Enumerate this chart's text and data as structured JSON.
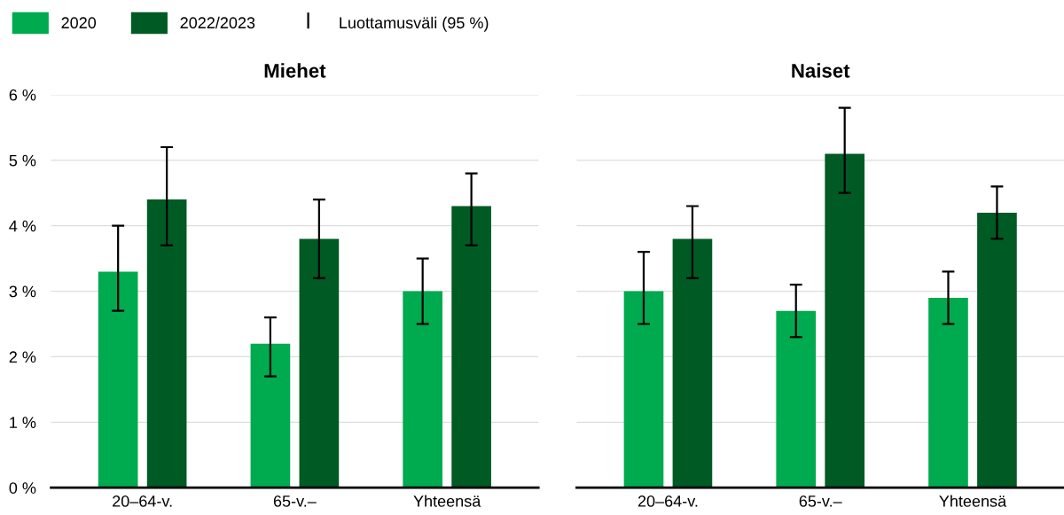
{
  "chart_data": [
    {
      "type": "bar",
      "title": "Miehet",
      "categories": [
        "20–64-v.",
        "65-v.–",
        "Yhteensä"
      ],
      "series": [
        {
          "name": "2020",
          "color": "#00aa4f",
          "values": [
            3.3,
            2.2,
            3.0
          ],
          "errors": [
            [
              2.7,
              4.0
            ],
            [
              1.7,
              2.6
            ],
            [
              2.5,
              3.5
            ]
          ]
        },
        {
          "name": "2022/2023",
          "color": "#005a24",
          "values": [
            4.4,
            3.8,
            4.3
          ],
          "errors": [
            [
              3.7,
              5.2
            ],
            [
              3.2,
              4.4
            ],
            [
              3.7,
              4.8
            ]
          ]
        }
      ],
      "ylim": [
        0,
        6
      ],
      "yticks": [
        {
          "value": 0,
          "label": "0 %"
        },
        {
          "value": 1,
          "label": "1 %"
        },
        {
          "value": 2,
          "label": "2 %"
        },
        {
          "value": 3,
          "label": "3 %"
        },
        {
          "value": 4,
          "label": "4 %"
        },
        {
          "value": 5,
          "label": "5 %"
        },
        {
          "value": 6,
          "label": "6 %"
        }
      ],
      "grid": "y",
      "legend": "top left",
      "annotations": [
        "Luottamusväli (95 %)"
      ]
    },
    {
      "type": "bar",
      "title": "Naiset",
      "categories": [
        "20–64-v.",
        "65-v.–",
        "Yhteensä"
      ],
      "series": [
        {
          "color": "#00aa4f",
          "values": [
            3.0,
            2.7,
            2.9
          ],
          "errors": [
            [
              2.5,
              3.6
            ],
            [
              2.3,
              3.1
            ],
            [
              2.5,
              3.3
            ]
          ]
        },
        {
          "color": "#005a24",
          "values": [
            3.8,
            5.1,
            4.2
          ],
          "errors": [
            [
              3.2,
              4.3
            ],
            [
              4.5,
              5.8
            ],
            [
              3.8,
              4.6
            ]
          ]
        }
      ],
      "ylim": [
        0,
        6
      ],
      "yticks": [
        {
          "value": 0,
          "label": null
        },
        {
          "value": 1,
          "label": null
        },
        {
          "value": 2,
          "label": null
        },
        {
          "value": 3,
          "label": null
        },
        {
          "value": 4,
          "label": null
        },
        {
          "value": 5,
          "label": null
        },
        {
          "value": 6,
          "label": null
        }
      ],
      "grid": "y",
      "tick_labels": "x"
    }
  ]
}
